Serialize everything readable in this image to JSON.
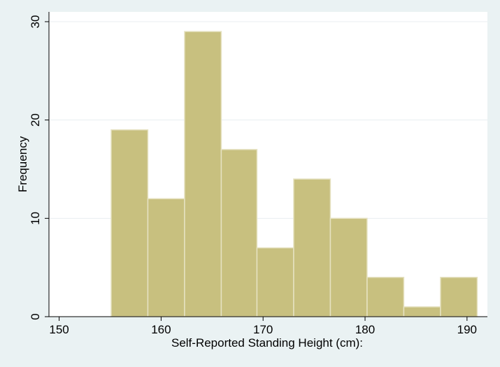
{
  "chart_data": {
    "type": "histogram",
    "title": "",
    "xlabel": "Self-Reported Standing Height (cm):",
    "ylabel": "Frequency",
    "xlim": [
      149,
      192
    ],
    "ylim": [
      0,
      30
    ],
    "x_ticks": [
      150,
      160,
      170,
      180,
      190
    ],
    "y_ticks": [
      0,
      10,
      20,
      30
    ],
    "bins": [
      {
        "start": 155.1,
        "end": 158.7,
        "count": 19
      },
      {
        "start": 158.7,
        "end": 162.3,
        "count": 12
      },
      {
        "start": 162.3,
        "end": 165.9,
        "count": 29
      },
      {
        "start": 165.9,
        "end": 169.4,
        "count": 17
      },
      {
        "start": 169.4,
        "end": 173.0,
        "count": 7
      },
      {
        "start": 173.0,
        "end": 176.6,
        "count": 14
      },
      {
        "start": 176.6,
        "end": 180.2,
        "count": 10
      },
      {
        "start": 180.2,
        "end": 183.8,
        "count": 4
      },
      {
        "start": 183.8,
        "end": 187.4,
        "count": 1
      },
      {
        "start": 187.4,
        "end": 191.0,
        "count": 4
      }
    ],
    "grid": true,
    "colors": {
      "bar_fill": "#c8c07f",
      "bar_edge": "#e6e2c2",
      "plot_background": "#ffffff",
      "page_background": "#eaf2f3",
      "grid": "#e8eef0"
    }
  }
}
